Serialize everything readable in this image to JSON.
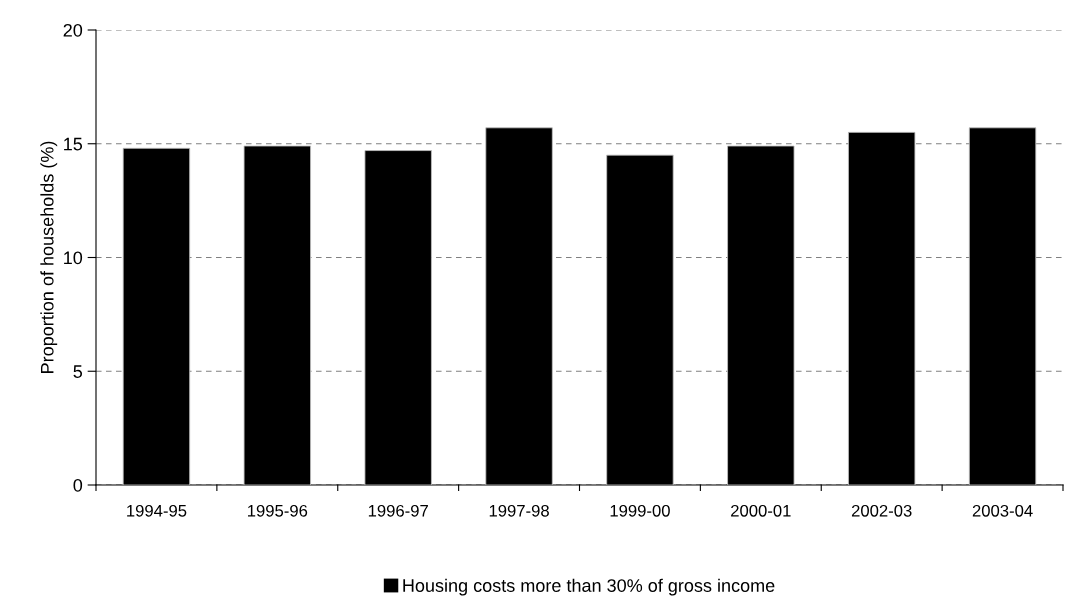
{
  "chart_data": {
    "type": "bar",
    "ylabel": "Proportion of households (%)",
    "categories": [
      "1994-95",
      "1995-96",
      "1996-97",
      "1997-98",
      "1999-00",
      "2000-01",
      "2002-03",
      "2003-04"
    ],
    "series": [
      {
        "name": "Housing costs more than 30% of gross income",
        "color": "#000000",
        "values": [
          14.8,
          14.9,
          14.7,
          15.7,
          14.5,
          14.9,
          15.5,
          15.7
        ]
      }
    ],
    "ylim": [
      0,
      20
    ],
    "yticks": [
      0,
      5,
      10,
      15,
      20
    ],
    "grid": "y",
    "legend": "bottom"
  }
}
